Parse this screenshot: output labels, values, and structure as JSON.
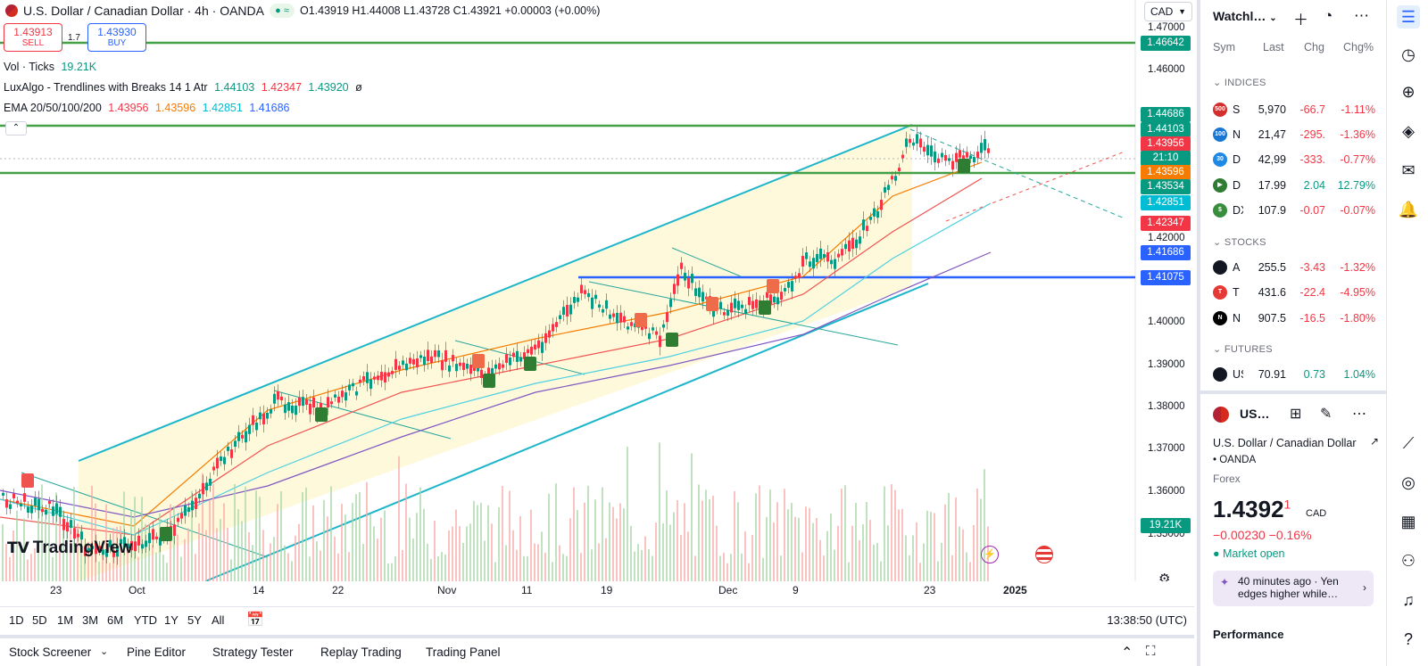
{
  "symbol": {
    "title": "U.S. Dollar / Canadian Dollar · 4h · OANDA",
    "ohlc": "O1.43919 H1.44008 L1.43728 C1.43921 +0.00003 (+0.00%)",
    "sell_price": "1.43913",
    "sell_label": "SELL",
    "buy_price": "1.43930",
    "buy_label": "BUY",
    "spread": "1.7",
    "currency": "CAD"
  },
  "indicators": {
    "vol": "Vol · Ticks",
    "vol_value": "19.21K",
    "luxalgo": "LuxAlgo - Trendlines with Breaks 14 1 Atr",
    "lux_v1": "1.44103",
    "lux_v2": "1.42347",
    "lux_v3": "1.43920",
    "lux_v4": "ø",
    "ema": "EMA 20/50/100/200",
    "ema_v1": "1.43956",
    "ema_v2": "1.43596",
    "ema_v3": "1.42851",
    "ema_v4": "1.41686"
  },
  "price_ticks": [
    "1.47000",
    "1.46000",
    "1.42000",
    "1.40000",
    "1.39000",
    "1.38000",
    "1.37000",
    "1.36000",
    "1.35000"
  ],
  "price_labels": [
    {
      "text": "1.46642",
      "color": "#089981"
    },
    {
      "text": "1.44686",
      "color": "#089981"
    },
    {
      "text": "1.44103",
      "color": "#089981"
    },
    {
      "text": "1.43956",
      "color": "#f23645"
    },
    {
      "text": "21:10",
      "color": "#089981"
    },
    {
      "text": "1.43596",
      "color": "#f57c00"
    },
    {
      "text": "1.43534",
      "color": "#089981"
    },
    {
      "text": "1.42851",
      "color": "#00bcd4"
    },
    {
      "text": "1.42347",
      "color": "#f23645"
    },
    {
      "text": "1.41686",
      "color": "#2962ff"
    },
    {
      "text": "1.41075",
      "color": "#2962ff"
    },
    {
      "text": "19.21K",
      "color": "#089981"
    }
  ],
  "time_labels": [
    "23",
    "Oct",
    "14",
    "22",
    "Nov",
    "11",
    "19",
    "Dec",
    "9",
    "23",
    "2025"
  ],
  "ranges": [
    "1D",
    "5D",
    "1M",
    "3M",
    "6M",
    "YTD",
    "1Y",
    "5Y",
    "All"
  ],
  "utc_time": "13:38:50 (UTC)",
  "bottom_tabs": [
    "Stock Screener",
    "Pine Editor",
    "Strategy Tester",
    "Replay Trading",
    "Trading Panel"
  ],
  "watermark": "TradingView",
  "watchlist": {
    "title": "Watchl…",
    "cols": {
      "sym": "Sym",
      "last": "Last",
      "chg": "Chg",
      "chgp": "Chg%"
    },
    "sections": [
      "INDICES",
      "STOCKS",
      "FUTURES"
    ],
    "rows": [
      {
        "badge": "500",
        "badge_color": "#d32f2f",
        "sym": "S",
        "last": "5,970",
        "chg": "-66.7",
        "chgp": "-1.11%"
      },
      {
        "badge": "100",
        "badge_color": "#1976d2",
        "sym": "N",
        "last": "21,47",
        "chg": "-295.",
        "chgp": "-1.36%"
      },
      {
        "badge": "30",
        "badge_color": "#1e88e5",
        "sym": "D",
        "last": "42,99",
        "chg": "-333.",
        "chgp": "-0.77%"
      },
      {
        "badge": "▶",
        "badge_color": "#2e7d32",
        "sym": "D",
        "last": "17.99",
        "chg": "2.04",
        "chgp": "12.79%"
      },
      {
        "badge": "$",
        "badge_color": "#388e3c",
        "sym": "DX",
        "last": "107.9",
        "chg": "-0.07",
        "chgp": "-0.07%"
      },
      {
        "badge": "",
        "badge_color": "#131722",
        "sym": "A",
        "last": "255.5",
        "chg": "-3.43",
        "chgp": "-1.32%"
      },
      {
        "badge": "T",
        "badge_color": "#e53935",
        "sym": "T",
        "last": "431.6",
        "chg": "-22.4",
        "chgp": "-4.95%"
      },
      {
        "badge": "N",
        "badge_color": "#000000",
        "sym": "N",
        "last": "907.5",
        "chg": "-16.5",
        "chgp": "-1.80%"
      },
      {
        "badge": "",
        "badge_color": "#131722",
        "sym": "US",
        "last": "70.91",
        "chg": "0.73",
        "chgp": "1.04%"
      }
    ]
  },
  "detail": {
    "sym_short": "US…",
    "full_name": "U.S. Dollar / Canadian Dollar",
    "exchange": "• OANDA",
    "category": "Forex",
    "price_main": "1.4392",
    "price_sup": "1",
    "currency": "CAD",
    "change": "−0.00230  −0.16%",
    "market": "● Market open",
    "news": "40 minutes ago · Yen edges higher while…",
    "performance": "Performance"
  }
}
